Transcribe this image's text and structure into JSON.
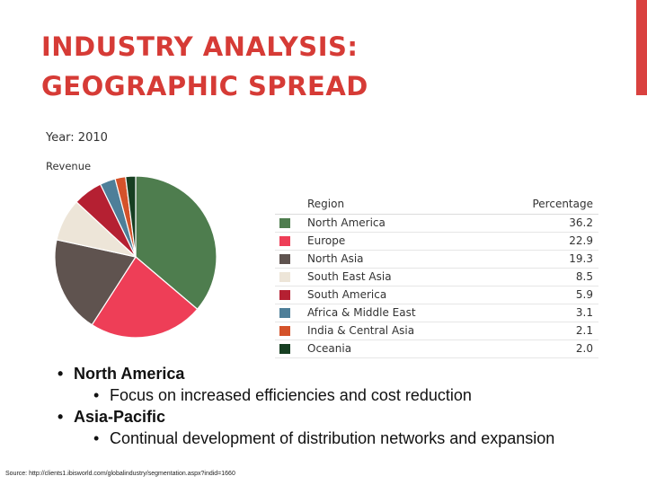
{
  "slide": {
    "title_line1": "INDUSTRY ANALYSIS:",
    "title_line2": "GEOGRAPHIC SPREAD",
    "accent_color": "#d9413f",
    "title_color": "#d63b36"
  },
  "chart_data": {
    "type": "pie",
    "title": "Year: 2010",
    "measure_label": "Revenue",
    "legend_header_category": "Region",
    "legend_header_value": "Percentage",
    "legend_position": "right",
    "categories": [
      "North America",
      "Europe",
      "North Asia",
      "South East Asia",
      "South America",
      "Africa & Middle East",
      "India & Central Asia",
      "Oceania"
    ],
    "values": [
      36.2,
      22.9,
      19.3,
      8.5,
      5.9,
      3.1,
      2.1,
      2.0
    ],
    "value_labels": [
      "36.2",
      "22.9",
      "19.3",
      "8.5",
      "5.9",
      "3.1",
      "2.1",
      "2.0"
    ],
    "colors": [
      "#4e7d4e",
      "#ee3e57",
      "#5f534f",
      "#ede5d8",
      "#b52032",
      "#4e7f99",
      "#d4522a",
      "#173f22"
    ]
  },
  "bullets": [
    {
      "text": "North America",
      "level": 1
    },
    {
      "text": "Focus on increased efficiencies and cost reduction",
      "level": 2
    },
    {
      "text": "Asia-Pacific",
      "level": 1
    },
    {
      "text": "Continual development of distribution networks and expansion",
      "level": 2
    }
  ],
  "bullet_glyph": "•",
  "source": "Source: http://clients1.ibisworld.com/globalindustry/segmentation.aspx?indid=1660"
}
